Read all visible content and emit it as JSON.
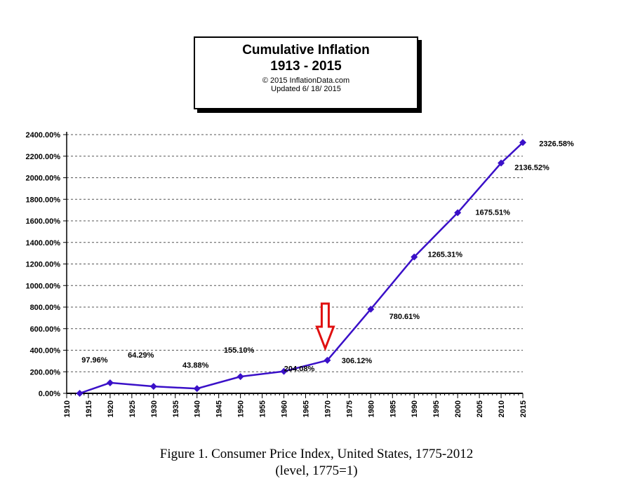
{
  "title_box": {
    "title": "Cumulative Inflation",
    "years": "1913 - 2015",
    "copyright": "© 2015 InflationData.com",
    "updated": "Updated  6/ 18/ 2015"
  },
  "caption": {
    "line1": "Figure 1. Consumer Price Index, United States, 1775-2012",
    "line2": "(level, 1775=1)"
  },
  "chart_data": {
    "type": "line",
    "title": "Cumulative Inflation",
    "subtitle": "1913 - 2015",
    "xlabel": "",
    "ylabel": "",
    "xlim": [
      1910,
      2015
    ],
    "ylim": [
      0,
      2400
    ],
    "grid": true,
    "x_ticks": [
      1910,
      1915,
      1920,
      1925,
      1930,
      1935,
      1940,
      1945,
      1950,
      1955,
      1960,
      1965,
      1970,
      1975,
      1980,
      1985,
      1990,
      1995,
      2000,
      2005,
      2010,
      2015
    ],
    "y_ticks": [
      "0.00%",
      "200.00%",
      "400.00%",
      "600.00%",
      "800.00%",
      "1000.00%",
      "1200.00%",
      "1400.00%",
      "1600.00%",
      "1800.00%",
      "2000.00%",
      "2200.00%",
      "2400.00%"
    ],
    "series": [
      {
        "color": "#3a10c8",
        "x": [
          1913,
          1920,
          1930,
          1940,
          1950,
          1960,
          1970,
          1980,
          1990,
          2000,
          2010,
          2015
        ],
        "y": [
          0,
          97.96,
          64.29,
          43.88,
          155.1,
          204.08,
          306.12,
          780.61,
          1265.31,
          1675.51,
          2136.52,
          2326.58
        ],
        "labels": [
          "",
          "97.96%",
          "64.29%",
          "43.88%",
          "155.10%",
          "204.08%",
          "306.12%",
          "780.61%",
          "1265.31%",
          "1675.51%",
          "2136.52%",
          "2326.58%"
        ]
      }
    ],
    "annotations": [
      {
        "type": "arrow-down",
        "x": 1970,
        "color": "#e01010"
      }
    ]
  }
}
